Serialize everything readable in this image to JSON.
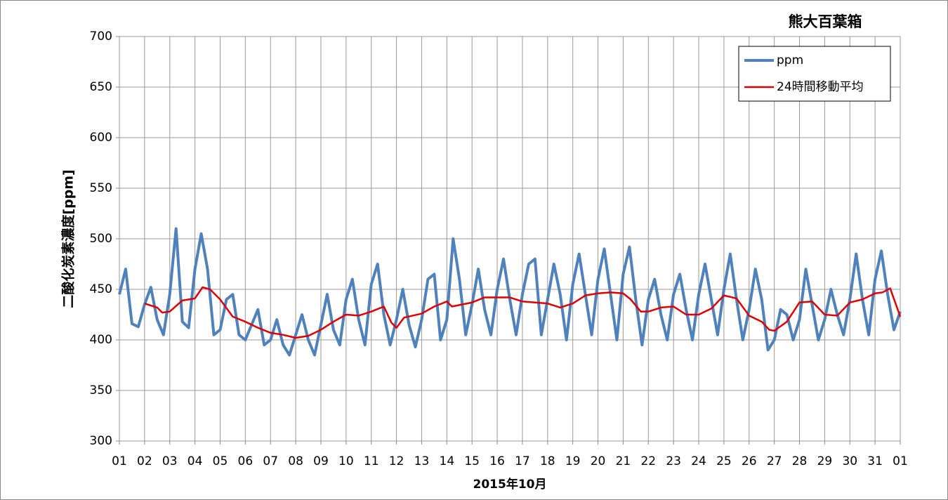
{
  "chart_data": {
    "type": "line",
    "title": "熊大百葉箱",
    "x_label": "2015年10月",
    "y_label": "二酸化炭素濃度[ppm]",
    "xlim": [
      0,
      31
    ],
    "ylim": [
      300,
      700
    ],
    "yticks": [
      300,
      350,
      400,
      450,
      500,
      550,
      600,
      650,
      700
    ],
    "xticks": [
      {
        "value": 0,
        "label": "01"
      },
      {
        "value": 1,
        "label": "02"
      },
      {
        "value": 2,
        "label": "03"
      },
      {
        "value": 3,
        "label": "04"
      },
      {
        "value": 4,
        "label": "05"
      },
      {
        "value": 5,
        "label": "06"
      },
      {
        "value": 6,
        "label": "07"
      },
      {
        "value": 7,
        "label": "08"
      },
      {
        "value": 8,
        "label": "09"
      },
      {
        "value": 9,
        "label": "10"
      },
      {
        "value": 10,
        "label": "11"
      },
      {
        "value": 11,
        "label": "12"
      },
      {
        "value": 12,
        "label": "13"
      },
      {
        "value": 13,
        "label": "14"
      },
      {
        "value": 14,
        "label": "15"
      },
      {
        "value": 15,
        "label": "16"
      },
      {
        "value": 16,
        "label": "17"
      },
      {
        "value": 17,
        "label": "18"
      },
      {
        "value": 18,
        "label": "19"
      },
      {
        "value": 19,
        "label": "20"
      },
      {
        "value": 20,
        "label": "21"
      },
      {
        "value": 21,
        "label": "22"
      },
      {
        "value": 22,
        "label": "23"
      },
      {
        "value": 23,
        "label": "24"
      },
      {
        "value": 24,
        "label": "25"
      },
      {
        "value": 25,
        "label": "26"
      },
      {
        "value": 26,
        "label": "27"
      },
      {
        "value": 27,
        "label": "28"
      },
      {
        "value": 28,
        "label": "29"
      },
      {
        "value": 29,
        "label": "30"
      },
      {
        "value": 30,
        "label": "31"
      },
      {
        "value": 31,
        "label": "01"
      }
    ],
    "grid": true,
    "legend": "top-right",
    "series": [
      {
        "name": "ppm",
        "color": "#4f81bd",
        "x": [
          0,
          0.25,
          0.5,
          0.75,
          1,
          1.25,
          1.5,
          1.75,
          2,
          2.25,
          2.5,
          2.75,
          3,
          3.25,
          3.5,
          3.75,
          4,
          4.25,
          4.5,
          4.75,
          5,
          5.25,
          5.5,
          5.75,
          6,
          6.25,
          6.5,
          6.75,
          7,
          7.25,
          7.5,
          7.75,
          8,
          8.25,
          8.5,
          8.75,
          9,
          9.25,
          9.5,
          9.75,
          10,
          10.25,
          10.5,
          10.75,
          11,
          11.25,
          11.5,
          11.75,
          12,
          12.25,
          12.5,
          12.75,
          13,
          13.25,
          13.5,
          13.75,
          14,
          14.25,
          14.5,
          14.75,
          15,
          15.25,
          15.5,
          15.75,
          16,
          16.25,
          16.5,
          16.75,
          17,
          17.25,
          17.5,
          17.75,
          18,
          18.25,
          18.5,
          18.75,
          19,
          19.25,
          19.5,
          19.75,
          20,
          20.25,
          20.5,
          20.75,
          21,
          21.25,
          21.5,
          21.75,
          22,
          22.25,
          22.5,
          22.75,
          23,
          23.25,
          23.5,
          23.75,
          24,
          24.25,
          24.5,
          24.75,
          25,
          25.25,
          25.5,
          25.75,
          26,
          26.25,
          26.5,
          26.75,
          27,
          27.25,
          27.5,
          27.75,
          28,
          28.25,
          28.5,
          28.75,
          29,
          29.25,
          29.5,
          29.75,
          30,
          30.25,
          30.5,
          30.75,
          31
        ],
        "values": [
          445,
          470,
          416,
          413,
          435,
          452,
          420,
          405,
          445,
          510,
          418,
          412,
          470,
          505,
          470,
          405,
          410,
          440,
          445,
          405,
          400,
          415,
          430,
          395,
          400,
          420,
          395,
          385,
          405,
          425,
          400,
          385,
          415,
          445,
          410,
          395,
          440,
          460,
          420,
          395,
          455,
          475,
          425,
          395,
          420,
          450,
          415,
          393,
          420,
          460,
          465,
          400,
          420,
          500,
          460,
          405,
          435,
          470,
          430,
          405,
          450,
          480,
          440,
          405,
          445,
          475,
          480,
          405,
          440,
          475,
          445,
          400,
          455,
          485,
          445,
          405,
          460,
          490,
          445,
          400,
          465,
          492,
          440,
          395,
          440,
          460,
          425,
          400,
          445,
          465,
          430,
          400,
          445,
          475,
          440,
          405,
          450,
          485,
          440,
          400,
          430,
          470,
          440,
          390,
          400,
          430,
          425,
          400,
          420,
          470,
          435,
          400,
          420,
          450,
          425,
          405,
          440,
          485,
          440,
          405,
          460,
          488,
          445,
          410,
          428
        ]
      },
      {
        "name": "24時間移動平均",
        "color": "#e00000",
        "x": [
          1,
          1.5,
          1.7,
          2,
          2.5,
          3,
          3.3,
          3.6,
          4,
          4.5,
          5,
          5.5,
          6,
          6.5,
          7,
          7.5,
          8,
          8.5,
          9,
          9.5,
          10,
          10.5,
          10.8,
          11,
          11.3,
          12,
          12.5,
          13,
          13.2,
          14,
          14.5,
          15,
          15.5,
          16,
          16.5,
          17,
          17.5,
          18,
          18.5,
          19,
          19.5,
          20,
          20.3,
          20.7,
          21,
          21.5,
          22,
          22.5,
          23,
          23.5,
          24,
          24.5,
          25,
          25.5,
          25.8,
          26,
          26.5,
          27,
          27.5,
          28,
          28.5,
          29,
          29.5,
          30,
          30.3,
          30.6,
          31
        ],
        "values": [
          436,
          432,
          427,
          428,
          439,
          441,
          452,
          450,
          440,
          423,
          418,
          412,
          407,
          405,
          402,
          404,
          410,
          418,
          425,
          424,
          428,
          433,
          417,
          412,
          422,
          426,
          433,
          438,
          433,
          437,
          442,
          442,
          442,
          438,
          437,
          436,
          432,
          436,
          444,
          446,
          447,
          446,
          440,
          428,
          428,
          432,
          433,
          425,
          425,
          431,
          444,
          441,
          424,
          418,
          410,
          409,
          418,
          437,
          438,
          425,
          424,
          437,
          440,
          446,
          447,
          451,
          423
        ]
      }
    ]
  }
}
